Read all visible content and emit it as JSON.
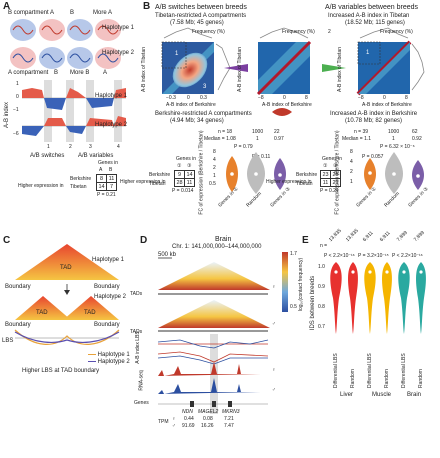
{
  "panelA": {
    "letter": "A",
    "top_labels": [
      "B compartment",
      "A",
      "B",
      "More A"
    ],
    "bottom_labels": [
      "A compartment",
      "B",
      "More B",
      "A"
    ],
    "haplotype_1": "Haplotype 1",
    "haplotype_2": "Haplotype 2",
    "ylabel": "A-B index",
    "yticks": [
      "1",
      "0",
      "−1",
      "−6"
    ],
    "markers": [
      "1",
      "2",
      "3",
      "4"
    ],
    "xcat_left": "A/B switches",
    "xcat_right": "A/B variables",
    "genes_in_label": "Genes in",
    "genes_in_cols": [
      "A",
      "B"
    ],
    "higher_expr": "Higher expression in",
    "rows": [
      "Berkshire",
      "Tibetan"
    ],
    "table": [
      [
        "8",
        "11"
      ],
      [
        "14",
        "7"
      ]
    ],
    "pval": "P = 0.21"
  },
  "panelB": {
    "letter": "B",
    "left_title": "A/B switches between breeds",
    "right_title": "A/B variables between breeds",
    "hm1_title": "Tibetan-restricted A compartments",
    "hm1_sub": "(7.58 Mb; 45 genes)",
    "hm2_title": "Increased A-B index in Tibetan",
    "hm2_sub": "(18.52 Mb; 115 genes)",
    "freq_label": "Frequency (%)",
    "freq_ticks": [
      "0",
      "5"
    ],
    "yaxis_tib": "A-B index of Tibetan",
    "xaxis_berk": "A-B index of Berkshire",
    "xticks1": [
      "−0.3",
      "0",
      "0.3"
    ],
    "xticks2": [
      "−8",
      "−4",
      "0",
      "4",
      "8"
    ],
    "xticks3": [
      "−8",
      "−4",
      "0",
      "4",
      "8"
    ],
    "circled": [
      "1",
      "2",
      "3"
    ],
    "hm3_title": "Berkshire-restricted A compartments",
    "hm3_sub": "(4.94 Mb; 34 genes)",
    "hm4_title": "Increased A-B index in Berkshire",
    "hm4_sub": "(10.78 Mb; 82 genes)",
    "viol1": {
      "n_line": [
        "n = 18",
        "1000",
        "22"
      ],
      "median_line": [
        "Median = 1.08",
        "1",
        "0.97"
      ],
      "p_top": "P = 0.79",
      "p_bot": "P = 0.11",
      "cats": [
        "Genes in ①",
        "Random",
        "Genes in ③"
      ],
      "ylabel": "FC of expression (Berkshire / Tibetan)",
      "yticks": [
        "8",
        "4",
        "2",
        "1",
        "0.5"
      ],
      "table": [
        [
          "9",
          "14"
        ],
        [
          "28",
          "11"
        ]
      ],
      "pval": "P = 0.014"
    },
    "viol2": {
      "n_line": [
        "n = 39",
        "1000",
        "62"
      ],
      "median_line": [
        "Median = 1.1",
        "1",
        "0.92"
      ],
      "p_top": "P = 6.32 × 10⁻⁶",
      "p_bot": "P = 0.057",
      "cats": [
        "Genes in ①",
        "Random",
        "Genes in ③"
      ],
      "ylabel": "FC of expression (Berkshire / Tibetan)",
      "yticks": [
        "8",
        "4",
        "2",
        "1"
      ],
      "table": [
        [
          "23",
          "25"
        ],
        [
          "11",
          "21"
        ]
      ],
      "pval": "P = 0.21"
    },
    "genes_in_label": "Genes in",
    "genes_in_cols": [
      "①",
      "③"
    ],
    "higher_expr": "Higher expression in",
    "rows": [
      "Berkshire",
      "Tibetan"
    ]
  },
  "panelC": {
    "letter": "C",
    "tad_label": "TAD",
    "haplotype_1": "Haplotype 1",
    "haplotype_2": "Haplotype 2",
    "boundary": "Boundary",
    "lbs": "LBS",
    "legend": [
      "Haplotype 1",
      "Haplotype 2"
    ],
    "caption": "Higher LBS at TAD boundary",
    "colors": {
      "hap1": "#e8a23a",
      "hap2": "#5a4fb0"
    }
  },
  "panelD": {
    "letter": "D",
    "title": "Brain",
    "coords": "Chr. 1: 141,000,000–144,000,000",
    "scale": "500 kb",
    "tads": "TADs",
    "ab_label": "A-B index LBS",
    "rna_label": "RNA-seq",
    "genes_label": "Genes",
    "colorbar_label": "log₁₀(contact frequency)",
    "colorbar_ticks": [
      "1.7",
      "0.5"
    ],
    "gene_names": [
      "NDN",
      "MAGEL2",
      "MKRN3"
    ],
    "tpm_label": "TPM",
    "tpm_f": [
      "0.44",
      "0.08",
      "7.21"
    ],
    "tpm_m": [
      "91.69",
      "16.26",
      "7.47"
    ],
    "sex_f": "♀",
    "sex_m": "♂"
  },
  "panelE": {
    "letter": "E",
    "ylabel": "IDS between breeds",
    "yticks": [
      "1.0",
      "0.9",
      "0.8",
      "0.7"
    ],
    "n_label": "n =",
    "n_values": [
      "13,835",
      "13,835",
      "6,911",
      "6,911",
      "7,899",
      "7,899"
    ],
    "p_values": [
      "P < 2.2×10⁻¹⁶",
      "P = 3.2×10⁻¹⁵",
      "P < 2.2×10⁻¹⁶"
    ],
    "cats": [
      "Differential LBS",
      "Random",
      "Differential LBS",
      "Random",
      "Differential LBS",
      "Random"
    ],
    "tissues": [
      "Liver",
      "Muscle",
      "Brain"
    ],
    "colors": [
      "#e7312f",
      "#f5b500",
      "#2aa9a0"
    ]
  }
}
